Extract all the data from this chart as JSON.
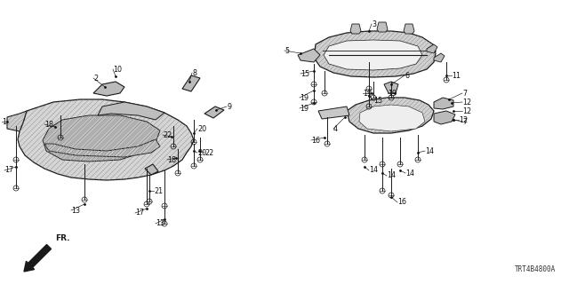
{
  "bg_color": "#ffffff",
  "fig_width": 6.4,
  "fig_height": 3.2,
  "dpi": 100,
  "diagram_code": "TRT4B4800A",
  "line_color": "#1a1a1a",
  "label_fontsize": 5.8,
  "code_fontsize": 5.5
}
